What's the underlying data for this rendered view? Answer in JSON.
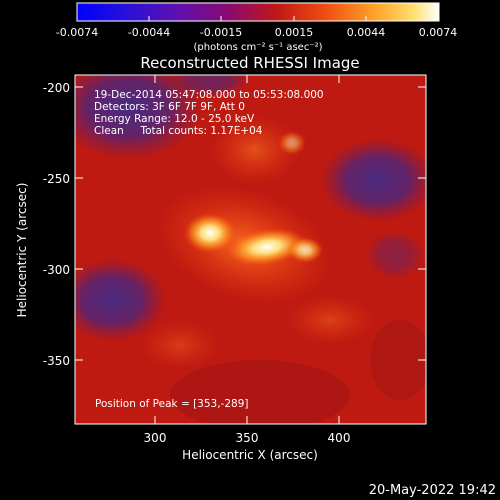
{
  "colorbar": {
    "ticks": [
      "-0.0074",
      "-0.0044",
      "-0.0015",
      "0.0015",
      "0.0044",
      "0.0074"
    ],
    "units_label": "(photons cm⁻² s⁻¹ asec⁻²)"
  },
  "title": "Reconstructed RHESSI Image",
  "info": {
    "line1": "19-Dec-2014 05:47:08.000 to 05:53:08.000",
    "line2": "Detectors: 3F 6F 7F 9F, Att 0",
    "line3": "Energy Range: 12.0 - 25.0 keV",
    "line4": "Clean     Total counts: 1.17E+04"
  },
  "peak_label": "Position of Peak = [353,-289]",
  "axes": {
    "xlabel": "Heliocentric X (arcsec)",
    "ylabel": "Heliocentric Y (arcsec)",
    "xticks": [
      "300",
      "350",
      "400"
    ],
    "yticks": [
      "-200",
      "-250",
      "-300",
      "-350"
    ]
  },
  "footer_date": "20-May-2022 19:42",
  "colors": {
    "background": "#000000",
    "text": "#ffffff",
    "colormap": [
      "#0000ff",
      "#5a2a8a",
      "#6e1e6e",
      "#b01010",
      "#e03010",
      "#ff6a20",
      "#ffc040",
      "#ffffff"
    ]
  }
}
